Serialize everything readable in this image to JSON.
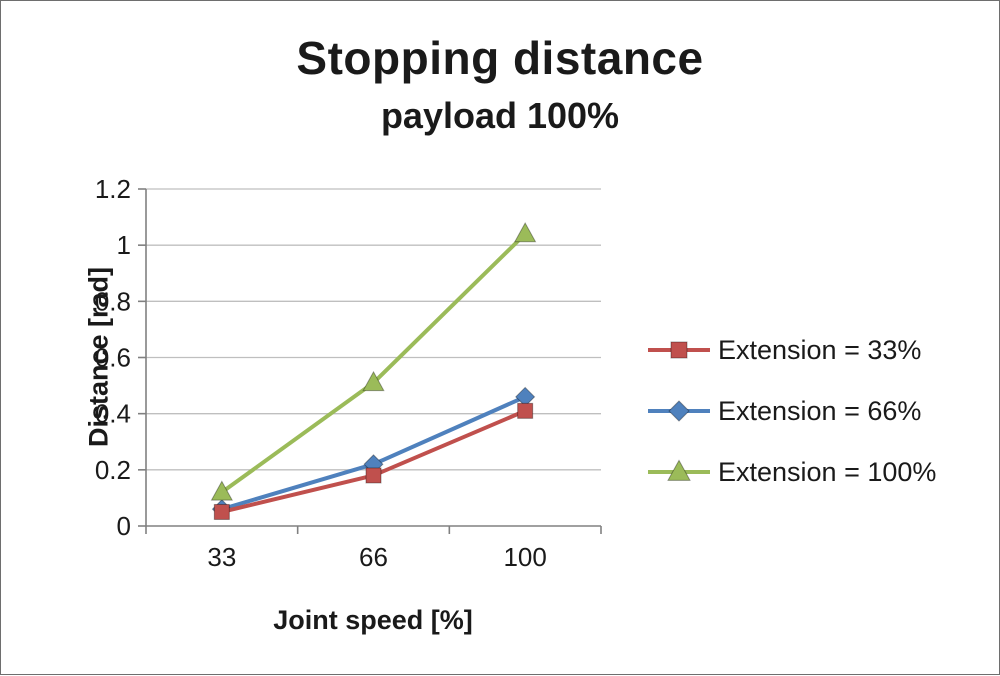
{
  "chart_data": {
    "type": "line",
    "title": "Stopping distance",
    "subtitle": "payload 100%",
    "xlabel": "Joint speed [%]",
    "ylabel": "Distance [rad]",
    "categories": [
      "33",
      "66",
      "100"
    ],
    "series": [
      {
        "name": "Extension = 33%",
        "marker": "square",
        "color": "#c0504d",
        "values": [
          0.05,
          0.18,
          0.41
        ]
      },
      {
        "name": "Extension = 66%",
        "marker": "diamond",
        "color": "#4f81bd",
        "values": [
          0.06,
          0.22,
          0.46
        ]
      },
      {
        "name": "Extension = 100%",
        "marker": "triangle",
        "color": "#9bbb59",
        "values": [
          0.12,
          0.51,
          1.04
        ]
      }
    ],
    "ylim": [
      0,
      1.2
    ],
    "yticks": [
      0,
      0.2,
      0.4,
      0.6,
      0.8,
      1,
      1.2
    ],
    "grid": true,
    "legend_position": "right",
    "colors": {
      "gridline": "#bfbfbf",
      "axis": "#808080",
      "text": "#1a1a1a"
    }
  }
}
